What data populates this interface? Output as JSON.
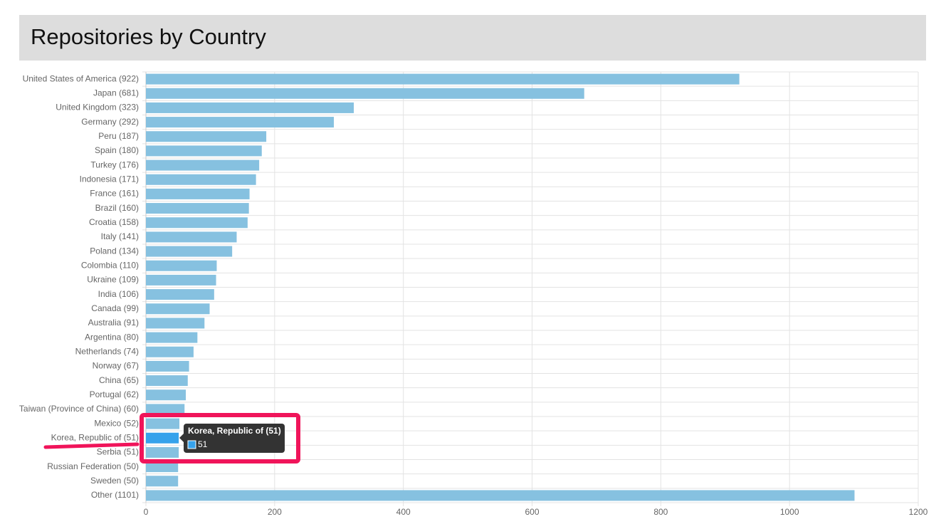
{
  "chart_data": {
    "type": "bar",
    "orientation": "horizontal",
    "title": "Repositories by Country",
    "categories": [
      "United States of America (922)",
      "Japan (681)",
      "United Kingdom (323)",
      "Germany (292)",
      "Peru (187)",
      "Spain (180)",
      "Turkey (176)",
      "Indonesia (171)",
      "France (161)",
      "Brazil (160)",
      "Croatia (158)",
      "Italy (141)",
      "Poland (134)",
      "Colombia (110)",
      "Ukraine (109)",
      "India (106)",
      "Canada (99)",
      "Australia (91)",
      "Argentina (80)",
      "Netherlands (74)",
      "Norway (67)",
      "China (65)",
      "Portugal (62)",
      "Taiwan (Province of China) (60)",
      "Mexico (52)",
      "Korea, Republic of (51)",
      "Serbia (51)",
      "Russian Federation (50)",
      "Sweden (50)",
      "Other (1101)"
    ],
    "values": [
      922,
      681,
      323,
      292,
      187,
      180,
      176,
      171,
      161,
      160,
      158,
      141,
      134,
      110,
      109,
      106,
      99,
      91,
      80,
      74,
      67,
      65,
      62,
      60,
      52,
      51,
      51,
      50,
      50,
      1101
    ],
    "color": "#86c1e0",
    "active_index": 25,
    "active_color": "#36a2eb",
    "xlim": [
      0,
      1200
    ],
    "xticks": [
      0,
      200,
      400,
      600,
      800,
      1000,
      1200
    ],
    "grid": true
  }
}
